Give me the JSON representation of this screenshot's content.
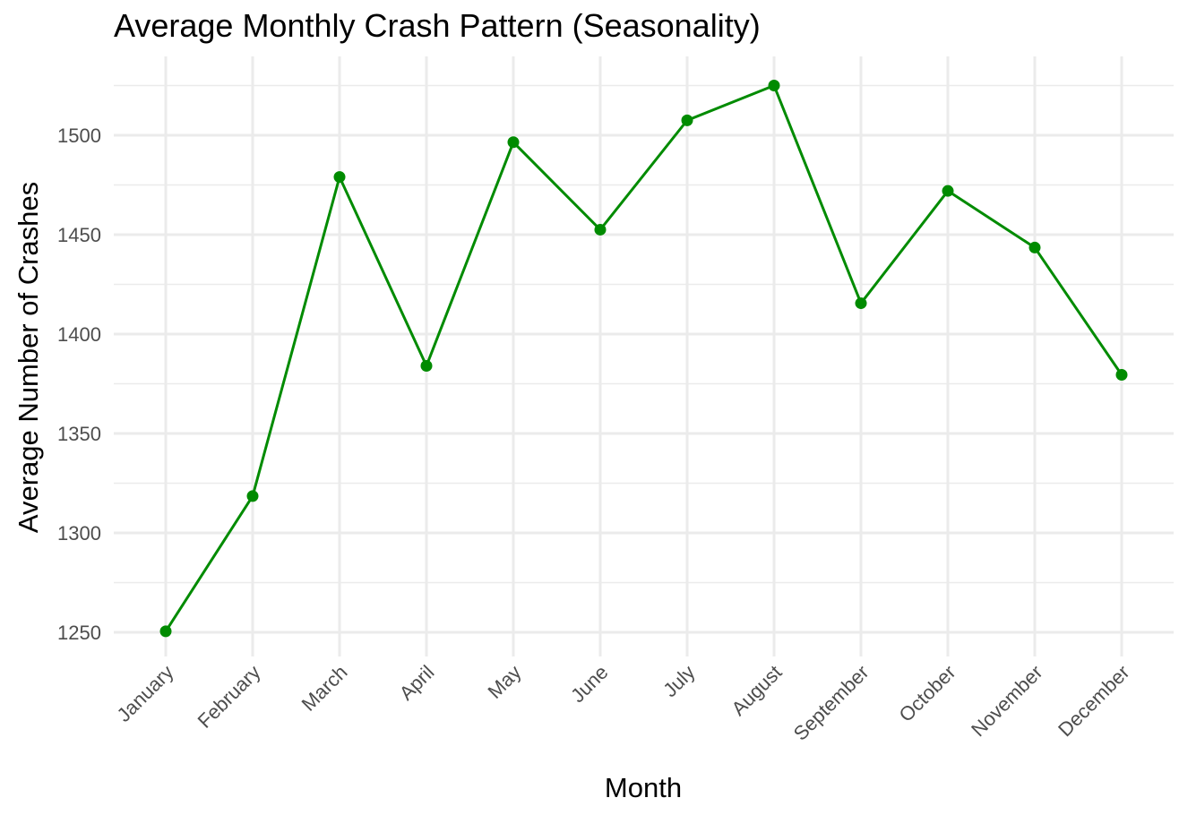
{
  "chart_data": {
    "type": "line",
    "title": "Average Monthly Crash Pattern (Seasonality)",
    "xlabel": "Month",
    "ylabel": "Average Number of Crashes",
    "categories": [
      "January",
      "February",
      "March",
      "April",
      "May",
      "June",
      "July",
      "August",
      "September",
      "October",
      "November",
      "December"
    ],
    "series": [
      {
        "values": [
          1250.5,
          1318.5,
          1479,
          1384,
          1496.5,
          1452.5,
          1507.5,
          1525,
          1415.5,
          1472,
          1443.5,
          1379.5
        ]
      }
    ],
    "ylim": [
      1236,
      1540
    ],
    "yticks": [
      1250,
      1300,
      1350,
      1400,
      1450,
      1500
    ],
    "grid": true,
    "legend": "none",
    "colors": {
      "line": "#008B00",
      "grid": "#ebebeb"
    }
  }
}
